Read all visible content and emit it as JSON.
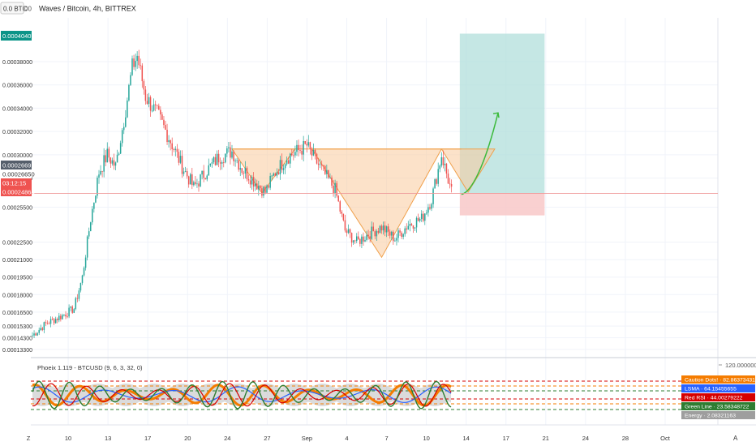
{
  "header": {
    "currency_badge": "0.0 BTC",
    "badge_num": "00",
    "title": "Waves / Bitcoin, 4h, BITTREX"
  },
  "price_labels": {
    "current_high": "0.00040407",
    "last_price": "0.00026692",
    "countdown": "03:12:15",
    "stop_level": "0.00024864",
    "mid_level": "0.00026650"
  },
  "colors": {
    "up": "#26a69a",
    "down": "#ef5350",
    "triangle_fill": "#f9cb9c",
    "triangle_stroke": "#f0a04b",
    "target_zone": "#b2dfdb",
    "stop_zone": "#f8c8c8",
    "projection": "#3cba3c"
  },
  "chart_data": [
    {
      "type": "candlestick",
      "yticks": [
        "0.00038000",
        "0.00036000",
        "0.00034000",
        "0.00032000",
        "0.00030000",
        "0.00028000",
        "0.00025500",
        "0.00022500",
        "0.00021000",
        "0.00019500",
        "0.00018000",
        "0.00016500",
        "0.00015300",
        "0.00014300",
        "0.00013300"
      ],
      "ylim": [
        0.000128,
        0.000412
      ],
      "xticks": [
        "Z",
        "10",
        "13",
        "17",
        "20",
        "24",
        "27",
        "Sep",
        "4",
        "7",
        "10",
        "14",
        "17",
        "21",
        "24",
        "28",
        "Oct"
      ],
      "anchors": [
        {
          "i": 0,
          "p": 0.000145
        },
        {
          "i": 8,
          "p": 0.000155
        },
        {
          "i": 18,
          "p": 0.000162
        },
        {
          "i": 25,
          "p": 0.000168
        },
        {
          "i": 30,
          "p": 0.000195
        },
        {
          "i": 35,
          "p": 0.000245
        },
        {
          "i": 40,
          "p": 0.000285
        },
        {
          "i": 45,
          "p": 0.0003
        },
        {
          "i": 50,
          "p": 0.00029
        },
        {
          "i": 55,
          "p": 0.00033
        },
        {
          "i": 60,
          "p": 0.000375
        },
        {
          "i": 63,
          "p": 0.000385
        },
        {
          "i": 68,
          "p": 0.00035
        },
        {
          "i": 75,
          "p": 0.000335
        },
        {
          "i": 82,
          "p": 0.000315
        },
        {
          "i": 90,
          "p": 0.00029
        },
        {
          "i": 97,
          "p": 0.000272
        },
        {
          "i": 104,
          "p": 0.000285
        },
        {
          "i": 112,
          "p": 0.000298
        },
        {
          "i": 120,
          "p": 0.000303
        },
        {
          "i": 126,
          "p": 0.000288
        },
        {
          "i": 133,
          "p": 0.000278
        },
        {
          "i": 140,
          "p": 0.000268
        },
        {
          "i": 146,
          "p": 0.000285
        },
        {
          "i": 153,
          "p": 0.000298
        },
        {
          "i": 158,
          "p": 0.000302
        },
        {
          "i": 165,
          "p": 0.000308
        },
        {
          "i": 168,
          "p": 0.0003
        },
        {
          "i": 175,
          "p": 0.000285
        },
        {
          "i": 182,
          "p": 0.00027
        },
        {
          "i": 188,
          "p": 0.000235
        },
        {
          "i": 195,
          "p": 0.000225
        },
        {
          "i": 202,
          "p": 0.000232
        },
        {
          "i": 210,
          "p": 0.000238
        },
        {
          "i": 218,
          "p": 0.000228
        },
        {
          "i": 226,
          "p": 0.00024
        },
        {
          "i": 234,
          "p": 0.000245
        },
        {
          "i": 240,
          "p": 0.000262
        },
        {
          "i": 246,
          "p": 0.0003
        },
        {
          "i": 252,
          "p": 0.000268
        }
      ],
      "pattern": {
        "neckline": [
          {
            "i": 120,
            "p": 0.000305
          },
          {
            "i": 258,
            "p": 0.000305
          }
        ],
        "left_shoulder": [
          {
            "i": 120,
            "p": 0.000305
          },
          {
            "i": 138,
            "p": 0.000267
          },
          {
            "i": 158,
            "p": 0.000305
          }
        ],
        "head": [
          {
            "i": 168,
            "p": 0.000305
          },
          {
            "i": 210,
            "p": 0.000212
          },
          {
            "i": 246,
            "p": 0.000305
          }
        ],
        "right_shoulder": [
          {
            "i": 246,
            "p": 0.000305
          },
          {
            "i": 262,
            "p": 0.000268
          },
          {
            "i": 278,
            "p": 0.000305
          }
        ],
        "target_zone": {
          "i0": 257,
          "i1": 308,
          "p0": 0.000267,
          "p1": 0.000404
        },
        "stop_zone": {
          "i0": 257,
          "i1": 308,
          "p0": 0.000248,
          "p1": 0.000267
        },
        "projection": [
          {
            "i": 258,
            "p": 0.000266
          },
          {
            "i": 264,
            "p": 0.000268
          },
          {
            "i": 272,
            "p": 0.00029
          },
          {
            "i": 280,
            "p": 0.000336
          }
        ]
      },
      "horizontal_line": 0.00026692
    },
    {
      "type": "line",
      "title": "Phoeix 1.119 - BTCUSD (9, 6, 3, 32, 0)",
      "scale_label": "120.00000000",
      "series": [
        {
          "name": "Caution Dots!",
          "value": "82.86373431",
          "color": "#f57c00"
        },
        {
          "name": "LSMA",
          "value": "64.15455655",
          "color": "#2962ff"
        },
        {
          "name": "Red RSI",
          "value": "44.00279222",
          "color": "#d50000"
        },
        {
          "name": "Green Line",
          "value": "23.58348722",
          "color": "#2e7d32"
        },
        {
          "name": "Energy",
          "value": "2.08321163",
          "color": "#9e9e9e"
        }
      ]
    }
  ],
  "footer": {
    "auto_label": "A"
  }
}
